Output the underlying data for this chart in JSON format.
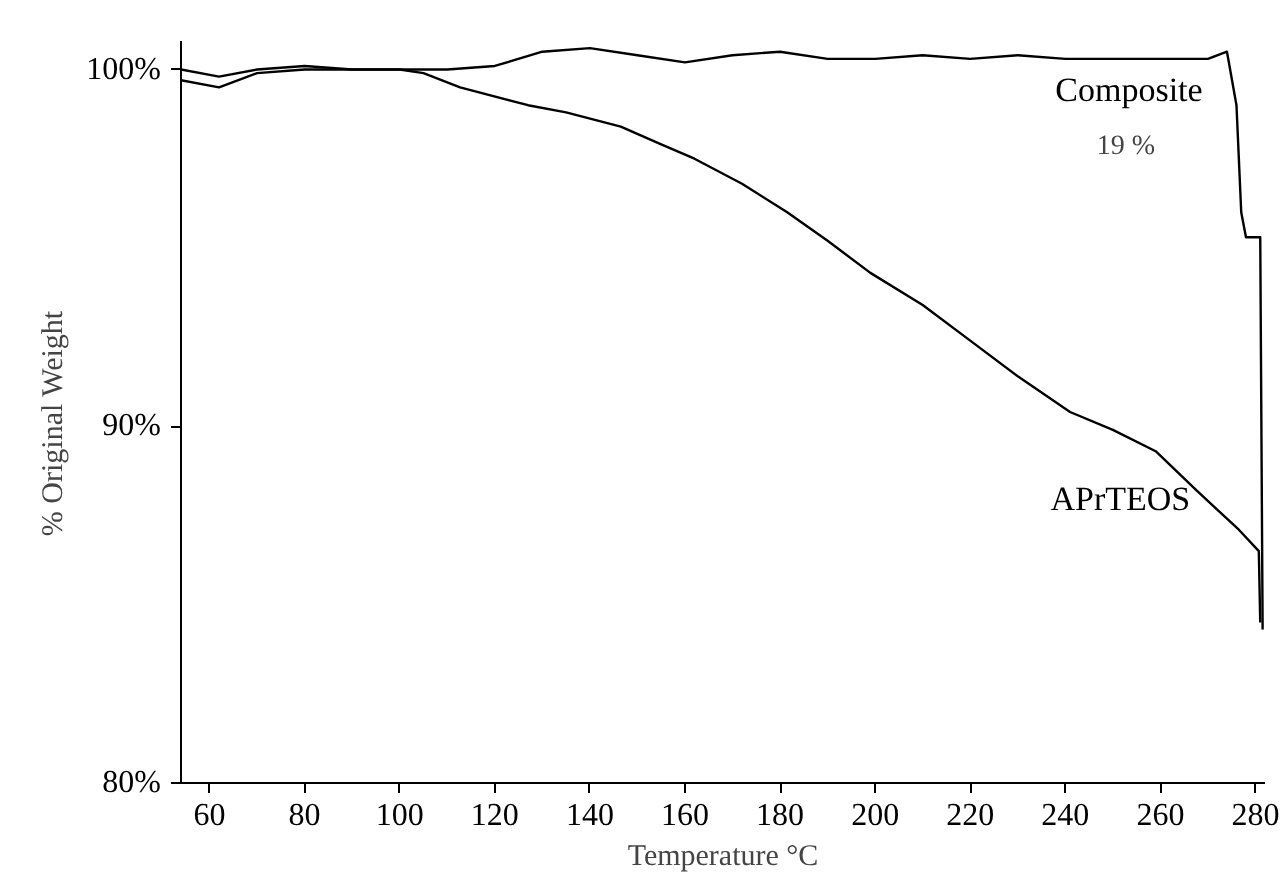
{
  "chart_data": {
    "type": "line",
    "xlabel": "Temperature °C",
    "ylabel": "%    Original Weight",
    "xlim": [
      54,
      282
    ],
    "ylim": [
      80,
      100.8
    ],
    "xticks": [
      60,
      80,
      100,
      120,
      140,
      160,
      180,
      200,
      220,
      240,
      260,
      280
    ],
    "yticks": [
      {
        "value": 80,
        "label": "80%"
      },
      {
        "value": 90,
        "label": "90%"
      },
      {
        "value": 100,
        "label": "100%"
      }
    ],
    "grid": false,
    "marker": "none",
    "line_style": "solid",
    "annotations": [
      "19 %"
    ],
    "series": [
      {
        "name": "Composite",
        "color": "#000000",
        "x": [
          54,
          62,
          70,
          80,
          90,
          100,
          110,
          120,
          130,
          140,
          150,
          160,
          170,
          180,
          190,
          200,
          210,
          220,
          230,
          240,
          250,
          260,
          270,
          274,
          276,
          277,
          278,
          281,
          281.5
        ],
        "values": [
          100,
          99.8,
          100,
          100.1,
          100,
          100,
          100,
          100.1,
          100.5,
          100.6,
          100.4,
          100.2,
          100.4,
          100.5,
          100.3,
          100.3,
          100.4,
          100.3,
          100.4,
          100.3,
          100.3,
          100.3,
          100.3,
          100.5,
          99,
          96,
          95.3,
          95.3,
          84.3
        ]
      },
      {
        "name": "APrTEOS",
        "color": "#000000",
        "x": [
          54,
          62,
          70,
          80,
          90,
          100,
          105,
          112.7,
          127,
          135,
          146.5,
          155,
          162,
          172,
          181.5,
          190,
          199,
          210,
          220,
          230,
          241,
          250,
          259,
          267.6,
          276.5,
          280.7,
          281
        ],
        "values": [
          99.7,
          99.5,
          99.9,
          100,
          100,
          100,
          99.9,
          99.5,
          99.0,
          98.8,
          98.4,
          97.9,
          97.5,
          96.8,
          96.0,
          95.2,
          94.3,
          93.4,
          92.4,
          91.4,
          90.4,
          89.9,
          89.3,
          88.2,
          87.1,
          86.5,
          84.5
        ]
      }
    ]
  }
}
